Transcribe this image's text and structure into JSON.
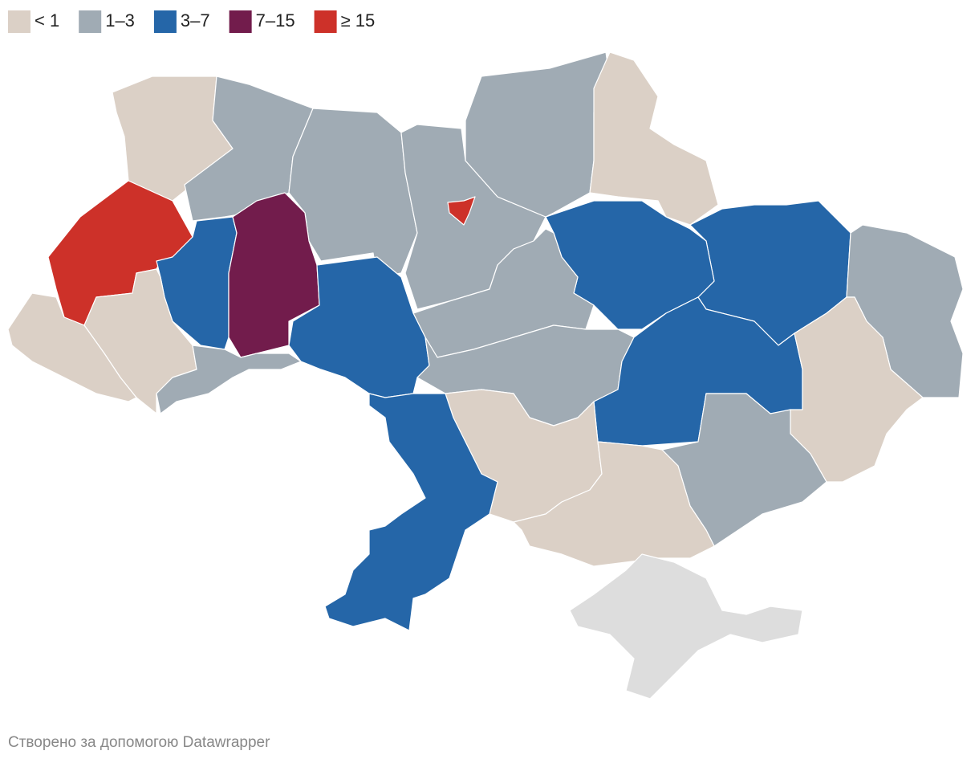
{
  "legend": [
    {
      "label": "< 1",
      "color": "#dbd0c6"
    },
    {
      "label": "1–3",
      "color": "#a0abb4"
    },
    {
      "label": "3–7",
      "color": "#2566a8"
    },
    {
      "label": "7–15",
      "color": "#721c4c"
    },
    {
      "label": "≥ 15",
      "color": "#cd3129"
    }
  ],
  "footer": "Створено за допомогою Datawrapper"
}
